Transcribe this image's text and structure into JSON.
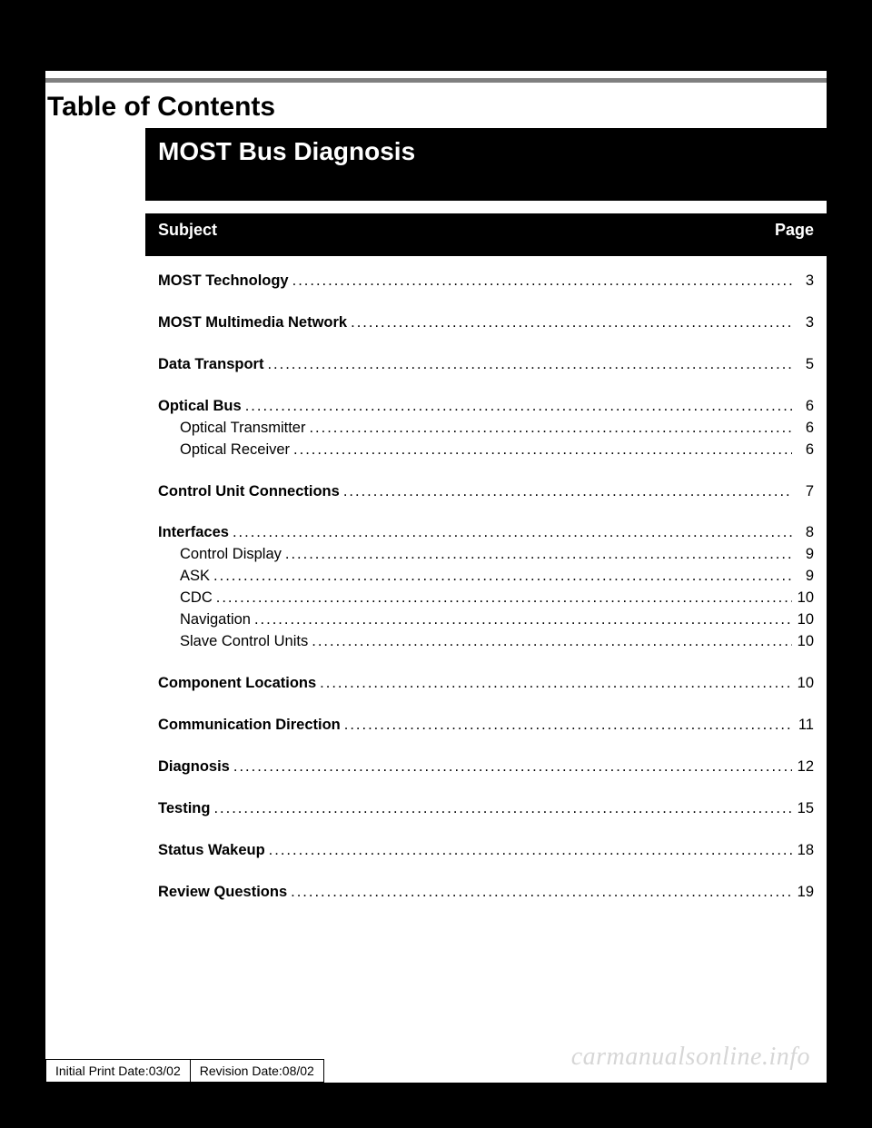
{
  "toc_heading": "Table of Contents",
  "main_title": "MOST Bus Diagnosis",
  "header": {
    "subject": "Subject",
    "page": "Page"
  },
  "entries": [
    {
      "label": "MOST Technology",
      "page": "3",
      "bold": true,
      "sub": false,
      "gap_after": true
    },
    {
      "label": "MOST Multimedia Network",
      "page": "3",
      "bold": true,
      "sub": false,
      "gap_after": true
    },
    {
      "label": "Data Transport",
      "page": "5",
      "bold": true,
      "sub": false,
      "gap_after": true
    },
    {
      "label": "Optical Bus",
      "page": "6",
      "bold": true,
      "sub": false,
      "gap_after": false
    },
    {
      "label": "Optical Transmitter",
      "page": "6",
      "bold": false,
      "sub": true,
      "gap_after": false
    },
    {
      "label": "Optical Receiver",
      "page": "6",
      "bold": false,
      "sub": true,
      "gap_after": true
    },
    {
      "label": "Control Unit Connections",
      "page": "7",
      "bold": true,
      "sub": false,
      "gap_after": true
    },
    {
      "label": "Interfaces",
      "page": "8",
      "bold": true,
      "sub": false,
      "gap_after": false
    },
    {
      "label": "Control Display",
      "page": "9",
      "bold": false,
      "sub": true,
      "gap_after": false
    },
    {
      "label": "ASK",
      "page": "9",
      "bold": false,
      "sub": true,
      "gap_after": false
    },
    {
      "label": "CDC",
      "page": "10",
      "bold": false,
      "sub": true,
      "gap_after": false
    },
    {
      "label": "Navigation",
      "page": "10",
      "bold": false,
      "sub": true,
      "gap_after": false
    },
    {
      "label": "Slave Control Units",
      "page": "10",
      "bold": false,
      "sub": true,
      "gap_after": true
    },
    {
      "label": "Component Locations",
      "page": "10",
      "bold": true,
      "sub": false,
      "gap_after": true
    },
    {
      "label": "Communication Direction",
      "page": "11",
      "bold": true,
      "sub": false,
      "gap_after": true
    },
    {
      "label": "Diagnosis",
      "page": "12",
      "bold": true,
      "sub": false,
      "gap_after": true
    },
    {
      "label": "Testing",
      "page": "15",
      "bold": true,
      "sub": false,
      "gap_after": true
    },
    {
      "label": "Status Wakeup",
      "page": "18",
      "bold": true,
      "sub": false,
      "gap_after": true
    },
    {
      "label": "Review Questions",
      "page": "19",
      "bold": true,
      "sub": false,
      "gap_after": false
    }
  ],
  "footer": {
    "initial": "Initial Print Date:03/02",
    "revision": "Revision Date:08/02"
  },
  "watermark": "carmanualsonline.info"
}
